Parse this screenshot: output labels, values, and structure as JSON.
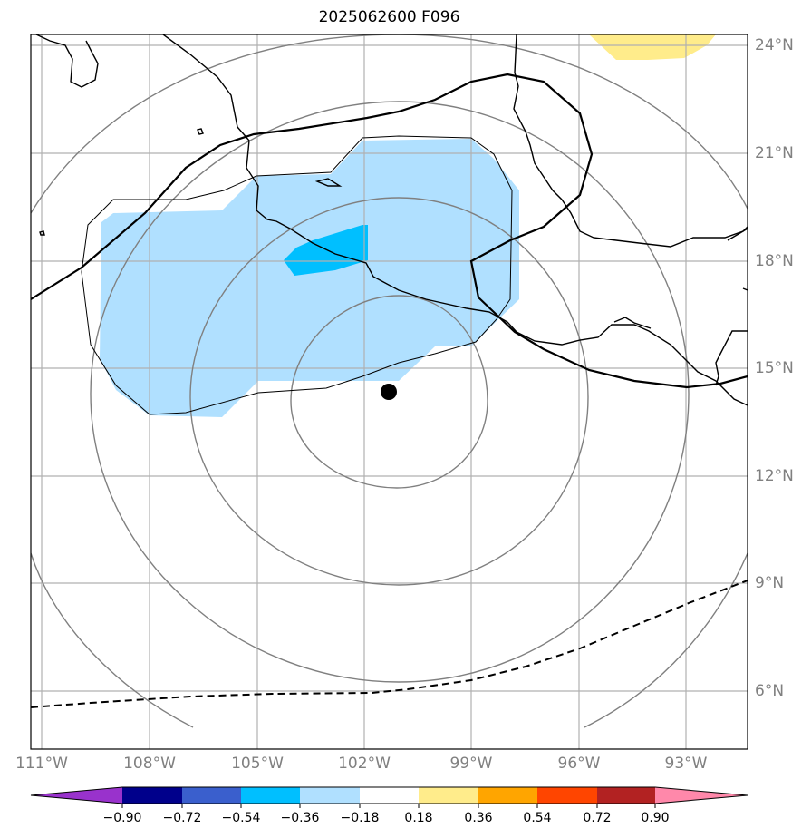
{
  "map": {
    "title": "2025062600 F096",
    "longitude_labels": [
      "111°W",
      "108°W",
      "105°W",
      "102°W",
      "99°W",
      "96°W",
      "93°W"
    ],
    "latitude_labels": [
      "24°N",
      "21°N",
      "18°N",
      "15°N",
      "12°N",
      "9°N",
      "6°N"
    ],
    "storm_marker": {
      "lon": -101.3,
      "lat": 14.3,
      "color": "#000000"
    }
  },
  "colorbar": {
    "tick_labels": [
      "−0.90",
      "−0.72",
      "−0.54",
      "−0.36",
      "−0.18",
      "0.18",
      "0.36",
      "0.54",
      "0.72",
      "0.90"
    ],
    "colors": [
      "#9932cc",
      "#00008b",
      "#3a5fcd",
      "#00bfff",
      "#b0e0ff",
      "#ffffff",
      "#ffec8b",
      "#ffa500",
      "#ff4500",
      "#b22222",
      "#ff88aa"
    ]
  },
  "colors": {
    "land_outline": "#000000",
    "range_rings": "#808080",
    "gridlines": "#b0b0b0",
    "tick_labels": "#808080"
  }
}
